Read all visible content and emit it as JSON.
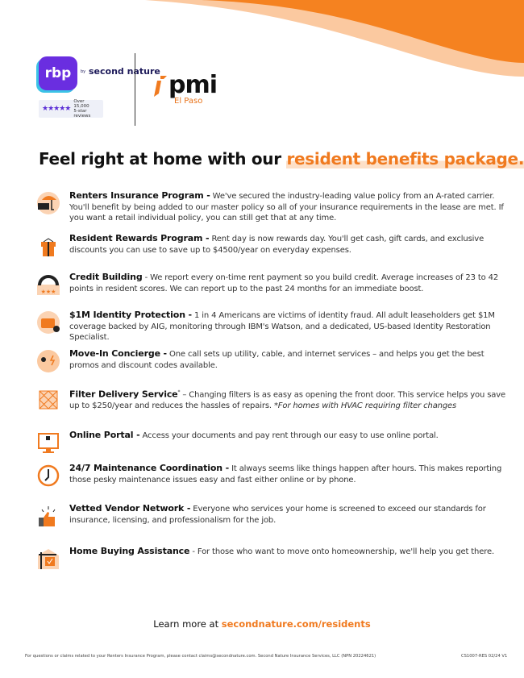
{
  "colors": {
    "accent": "#f07a1f",
    "rbp_purple": "#6a2ee0",
    "peach": "#fbc9a0"
  },
  "header": {
    "rbp_logo": "rbp",
    "by_label": "by",
    "second_nature_logo": "second nature",
    "stars": "★★★★★",
    "reviews_text": "Over 15,000",
    "reviews_sub": "5-star reviews",
    "pmi_logo": "pmi",
    "pmi_location": "El Paso"
  },
  "title": {
    "prefix": "Feel right at home with our ",
    "highlight": "resident benefits package."
  },
  "benefits": [
    {
      "icon": "umbrella-house-icon",
      "title": "Renters Insurance Program -",
      "text": " We've secured the industry-leading value policy from an A-rated carrier. You'll benefit by being added to our master policy so all of your insurance requirements in the lease are met. If you want a retail individual policy, you can still get that at any time."
    },
    {
      "icon": "gift-icon",
      "title": "Resident Rewards Program -",
      "text": " Rent day is now rewards day. You'll get cash, gift cards, and exclusive discounts you can use to save up to $4500/year on everyday expenses."
    },
    {
      "icon": "credit-gauge-icon",
      "title": "Credit Building",
      "text": " - We report every on-time rent payment so you build credit. Average increases of 23 to 42 points in resident scores. We can report up to the past 24 months for an immediate boost."
    },
    {
      "icon": "id-card-shield-icon",
      "title": "$1M Identity Protection -",
      "text": " 1 in 4 Americans are victims of identity fraud. All adult leaseholders get $1M coverage backed by AIG, monitoring through IBM's Watson, and a dedicated, US-based Identity Restoration Specialist."
    },
    {
      "icon": "utilities-icon",
      "title": "Move-In Concierge -",
      "text": " One call sets up utility, cable, and internet services – and helps you get the best promos and discount codes available."
    },
    {
      "icon": "air-filter-icon",
      "title": "Filter Delivery Service",
      "sup": "*",
      "text": " – Changing filters is as easy as opening the front door. This service helps you save up to $250/year and reduces the hassles of repairs. ",
      "note": "*For homes with HVAC requiring filter changes"
    },
    {
      "icon": "monitor-icon",
      "title": "Online Portal -",
      "text": " Access your documents and pay rent through our easy to use online portal."
    },
    {
      "icon": "clock-icon",
      "title": "24/7 Maintenance Coordination -",
      "text": " It always seems like things happen after hours. This makes reporting those pesky maintenance issues easy and fast either online or by phone."
    },
    {
      "icon": "thumbs-up-icon",
      "title": "Vetted Vendor Network -",
      "text": " Everyone who services your home is screened to exceed our standards for insurance, licensing, and professionalism for the job."
    },
    {
      "icon": "home-sign-icon",
      "title": "Home Buying Assistance",
      "text": " - For those who want to move onto homeownership, we'll help you get there."
    }
  ],
  "learn_more": {
    "prefix": "Learn more at ",
    "link": "secondnature.com/residents"
  },
  "footer": {
    "disclaimer": "For questions or claims related to your Renters Insurance Program, please contact claims@secondnature.com. Second Nature Insurance Services, LLC (NPN 20224621)",
    "code": "CS1007-RES 02/24 V1"
  }
}
